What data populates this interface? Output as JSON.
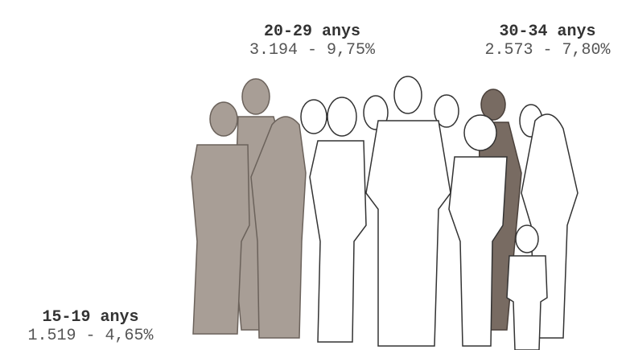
{
  "groups": [
    {
      "label": "20-29 anys",
      "stats": "3.194 - 9,75%"
    },
    {
      "label": "30-34 anys",
      "stats": "2.573 - 7,80%"
    },
    {
      "label": "15-19 anys",
      "stats": "1.519 - 4,65%"
    }
  ]
}
